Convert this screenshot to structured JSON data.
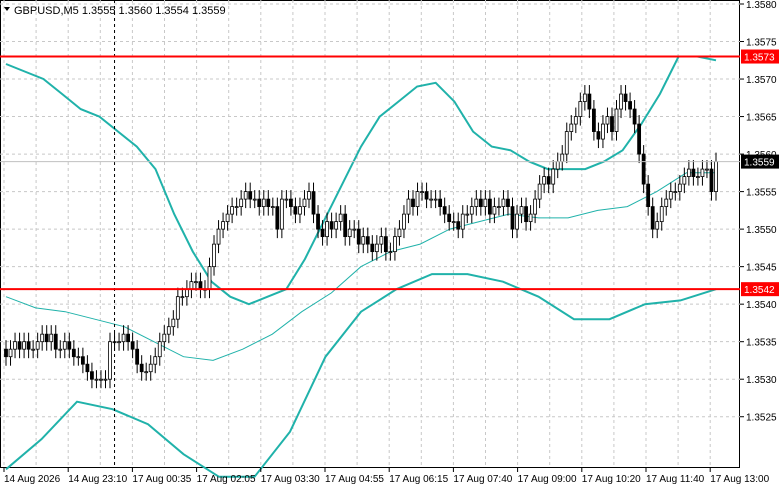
{
  "chart_data": {
    "type": "candlestick",
    "title": "GBPUSD,M5  1.3555 1.3560 1.3554 1.3559",
    "symbol": "GBPUSD,M5",
    "ohlc_header": [
      "1.3555",
      "1.3560",
      "1.3554",
      "1.3559"
    ],
    "ylim": [
      1.35195,
      1.358
    ],
    "y_ticks": [
      "1.3580",
      "1.3575",
      "1.3570",
      "1.3565",
      "1.3560",
      "1.3555",
      "1.3550",
      "1.3545",
      "1.3540",
      "1.3535",
      "1.3530",
      "1.3525"
    ],
    "x_ticks": [
      "14 Aug 2026",
      "14 Aug 23:10",
      "17 Aug 00:35",
      "17 Aug 02:05",
      "17 Aug 03:30",
      "17 Aug 04:55",
      "17 Aug 06:15",
      "17 Aug 07:40",
      "17 Aug 09:00",
      "17 Aug 10:20",
      "17 Aug 11:40",
      "17 Aug 13:00"
    ],
    "grid": true,
    "levels": [
      {
        "value": 1.3573,
        "label": "1.3573",
        "color": "#ff0000"
      },
      {
        "value": 1.3542,
        "label": "1.3542",
        "color": "#ff0000"
      }
    ],
    "current_price": {
      "value": 1.3559,
      "label": "1.3559"
    },
    "crosshair_bar_index": 24,
    "indicators": [
      {
        "type": "bollinger-upper",
        "color": "#20b2aa",
        "values": [
          1.3572,
          1.3571,
          1.357,
          1.3568,
          1.3566,
          1.3565,
          1.3563,
          1.3561,
          1.3558,
          1.3552,
          1.3547,
          1.3543,
          1.3541,
          1.354,
          1.3541,
          1.3542,
          1.3546,
          1.3551,
          1.3556,
          1.3561,
          1.3565,
          1.3567,
          1.3569,
          1.35695,
          1.3567,
          1.3563,
          1.3561,
          1.35605,
          1.3559,
          1.3558,
          1.3558,
          1.3558,
          1.3559,
          1.35605,
          1.3564,
          1.3568,
          1.3573,
          1.3573,
          1.35725
        ]
      },
      {
        "type": "bollinger-middle",
        "color": "#20b2aa",
        "values": [
          1.3541,
          1.35395,
          1.3539,
          1.3538,
          1.3537,
          1.3535,
          1.3533,
          1.35325,
          1.3534,
          1.3536,
          1.3539,
          1.35415,
          1.3545,
          1.3547,
          1.3548,
          1.355,
          1.3551,
          1.3552,
          1.35515,
          1.35515,
          1.35525,
          1.3553,
          1.3555,
          1.35575,
          1.35575
        ]
      },
      {
        "type": "bollinger-lower",
        "color": "#20b2aa",
        "values": [
          1.3518,
          1.3522,
          1.3527,
          1.3526,
          1.3524,
          1.352,
          1.3517,
          1.3517,
          1.3523,
          1.3533,
          1.3539,
          1.3542,
          1.3544,
          1.3544,
          1.3543,
          1.3541,
          1.3538,
          1.3538,
          1.354,
          1.35405,
          1.3542
        ]
      }
    ],
    "candles": {
      "note": "M5 OHLC bars, read off the price axis",
      "open": [
        1.3534,
        1.3533,
        1.3534,
        1.3535,
        1.3534,
        1.3535,
        1.3534,
        1.3534,
        1.3535,
        1.3536,
        1.3535,
        1.3536,
        1.3534,
        1.3534,
        1.3535,
        1.3534,
        1.3533,
        1.3533,
        1.3532,
        1.3531,
        1.353,
        1.353,
        1.353,
        1.353,
        1.3535,
        1.3535,
        1.3535,
        1.3536,
        1.3535,
        1.3534,
        1.3532,
        1.3531,
        1.3531,
        1.3532,
        1.3533,
        1.3535,
        1.3536,
        1.3537,
        1.3538,
        1.3541,
        1.3541,
        1.3542,
        1.3543,
        1.3543,
        1.3542,
        1.3542,
        1.3545,
        1.3548,
        1.355,
        1.3551,
        1.3552,
        1.3553,
        1.3553,
        1.3554,
        1.3555,
        1.3554,
        1.3554,
        1.3553,
        1.3554,
        1.3553,
        1.3553,
        1.355,
        1.3554,
        1.3554,
        1.3553,
        1.3552,
        1.3553,
        1.3554,
        1.3555,
        1.3552,
        1.355,
        1.3549,
        1.3551,
        1.355,
        1.3551,
        1.3552,
        1.3549,
        1.355,
        1.355,
        1.3548,
        1.3549,
        1.3548,
        1.3547,
        1.3548,
        1.3549,
        1.3547,
        1.3547,
        1.3549,
        1.355,
        1.3552,
        1.3554,
        1.3553,
        1.3555,
        1.3555,
        1.3554,
        1.3554,
        1.3554,
        1.3553,
        1.3552,
        1.3551,
        1.3551,
        1.355,
        1.3552,
        1.3552,
        1.3553,
        1.3554,
        1.3553,
        1.3554,
        1.3552,
        1.3553,
        1.3553,
        1.3554,
        1.3553,
        1.355,
        1.3552,
        1.3553,
        1.3551,
        1.3552,
        1.3554,
        1.3556,
        1.3557,
        1.3556,
        1.3558,
        1.3559,
        1.356,
        1.3563,
        1.3564,
        1.3565,
        1.3567,
        1.3568,
        1.3566,
        1.3563,
        1.3562,
        1.3564,
        1.3565,
        1.3563,
        1.3566,
        1.3568,
        1.3567,
        1.3566,
        1.3564,
        1.356,
        1.3556,
        1.3553,
        1.355,
        1.3551,
        1.3553,
        1.3554,
        1.3555,
        1.3555,
        1.3556,
        1.3557,
        1.3558,
        1.3557,
        1.3557,
        1.3558,
        1.3558,
        1.3555
      ],
      "close": [
        1.3533,
        1.3534,
        1.3535,
        1.3534,
        1.3535,
        1.3534,
        1.3534,
        1.3535,
        1.3536,
        1.3535,
        1.3536,
        1.3534,
        1.3534,
        1.3535,
        1.3534,
        1.3533,
        1.3533,
        1.3532,
        1.3531,
        1.353,
        1.353,
        1.353,
        1.353,
        1.3535,
        1.3535,
        1.3535,
        1.3536,
        1.3535,
        1.3534,
        1.3532,
        1.3531,
        1.3531,
        1.3532,
        1.3533,
        1.3535,
        1.3536,
        1.3537,
        1.3538,
        1.3541,
        1.3541,
        1.3542,
        1.3543,
        1.3543,
        1.3542,
        1.3542,
        1.3545,
        1.3548,
        1.355,
        1.3551,
        1.3552,
        1.3553,
        1.3553,
        1.3554,
        1.3555,
        1.3554,
        1.3554,
        1.3553,
        1.3554,
        1.3553,
        1.3553,
        1.355,
        1.3554,
        1.3554,
        1.3553,
        1.3552,
        1.3553,
        1.3554,
        1.3555,
        1.3552,
        1.355,
        1.3549,
        1.3551,
        1.355,
        1.3551,
        1.3552,
        1.3549,
        1.355,
        1.355,
        1.3548,
        1.3549,
        1.3548,
        1.3547,
        1.3548,
        1.3549,
        1.3547,
        1.3547,
        1.3549,
        1.355,
        1.3552,
        1.3554,
        1.3553,
        1.3555,
        1.3555,
        1.3554,
        1.3554,
        1.3554,
        1.3553,
        1.3552,
        1.3551,
        1.3551,
        1.355,
        1.3552,
        1.3552,
        1.3553,
        1.3554,
        1.3553,
        1.3554,
        1.3552,
        1.3553,
        1.3553,
        1.3554,
        1.3553,
        1.355,
        1.3552,
        1.3553,
        1.3551,
        1.3552,
        1.3554,
        1.3556,
        1.3557,
        1.3556,
        1.3558,
        1.3559,
        1.356,
        1.3563,
        1.3564,
        1.3565,
        1.3567,
        1.3568,
        1.3566,
        1.3563,
        1.3562,
        1.3564,
        1.3565,
        1.3563,
        1.3566,
        1.3568,
        1.3567,
        1.3566,
        1.3564,
        1.356,
        1.3556,
        1.3553,
        1.355,
        1.3551,
        1.3553,
        1.3554,
        1.3555,
        1.3555,
        1.3556,
        1.3557,
        1.3558,
        1.3557,
        1.3557,
        1.3558,
        1.3558,
        1.3555,
        1.3559
      ]
    }
  }
}
